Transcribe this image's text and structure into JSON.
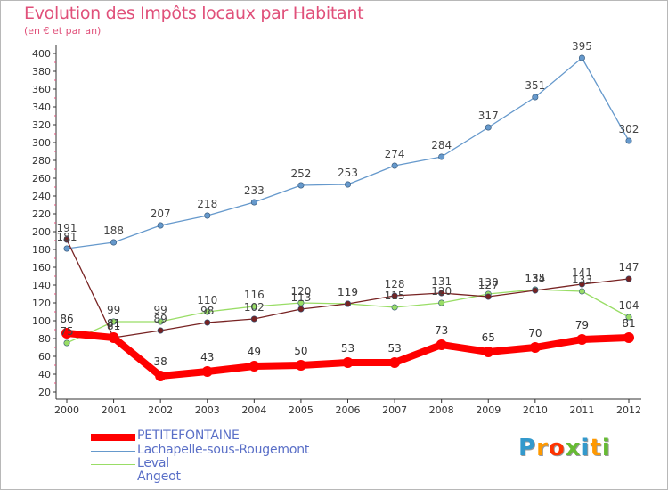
{
  "header": {
    "title": "Evolution des Impôts locaux par Habitant",
    "subtitle": "(en € et par an)"
  },
  "chart_data": {
    "type": "line",
    "title": "Evolution des Impôts locaux par Habitant",
    "subtitle": "(en € et par an)",
    "xlabel": "",
    "ylabel": "",
    "ylim": [
      20,
      400
    ],
    "y_ticks": [
      "20",
      "40",
      "60",
      "80",
      "100",
      "120",
      "140",
      "160",
      "180",
      "200",
      "220",
      "240",
      "260",
      "280",
      "300",
      "320",
      "340",
      "360",
      "380",
      "400"
    ],
    "categories": [
      "2000",
      "2001",
      "2002",
      "2003",
      "2004",
      "2005",
      "2006",
      "2007",
      "2008",
      "2009",
      "2010",
      "2011",
      "2012"
    ],
    "grid": "none",
    "legend_position": "bottom-left",
    "series": [
      {
        "name": "PETITEFONTAINE",
        "color": "#ff0000",
        "values": [
          86,
          81,
          38,
          43,
          49,
          50,
          53,
          53,
          73,
          65,
          70,
          79,
          81
        ]
      },
      {
        "name": "Lachapelle-sous-Rougemont",
        "color": "#6699cc",
        "values": [
          181,
          188,
          207,
          218,
          233,
          252,
          253,
          274,
          284,
          317,
          351,
          395,
          302
        ]
      },
      {
        "name": "Leval",
        "color": "#99dd66",
        "values": [
          75,
          99,
          99,
          110,
          116,
          120,
          119,
          115,
          120,
          130,
          135,
          133,
          104
        ]
      },
      {
        "name": "Angeot",
        "color": "#772222",
        "values": [
          191,
          81,
          89,
          98,
          102,
          113,
          119,
          128,
          131,
          127,
          134,
          141,
          147
        ]
      }
    ]
  },
  "legend": {
    "items": [
      "PETITEFONTAINE",
      "Lachapelle-sous-Rougemont",
      "Leval",
      "Angeot"
    ]
  },
  "logo": {
    "letters": [
      "P",
      "r",
      "o",
      "x",
      "i",
      "t",
      "i"
    ],
    "colors": [
      "#3399cc",
      "#ff9900",
      "#ff3300",
      "#66bb33",
      "#3399cc",
      "#ff9900",
      "#66bb33"
    ]
  }
}
